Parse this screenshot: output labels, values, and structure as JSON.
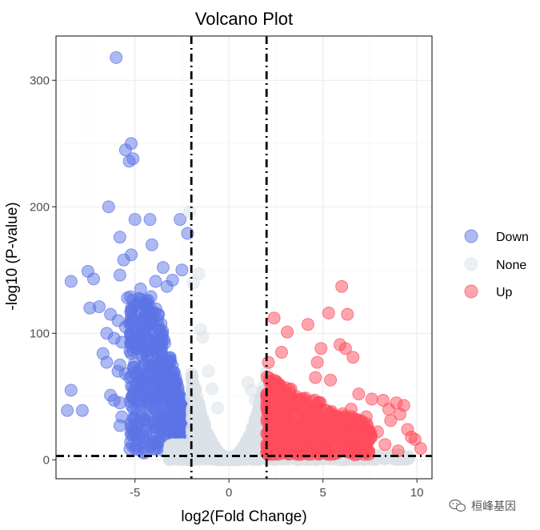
{
  "chart_data": {
    "type": "scatter",
    "title": "Volcano Plot",
    "xlabel": "log2(Fold Change)",
    "ylabel": "-log10 (P-value)",
    "xlim": [
      -9.2,
      10.8
    ],
    "ylim": [
      -15,
      335
    ],
    "x_ticks": [
      -5,
      0,
      5,
      10
    ],
    "y_ticks": [
      0,
      100,
      200,
      300
    ],
    "x_tick_labels": [
      "-5",
      "0",
      "5",
      "10"
    ],
    "y_tick_labels": [
      "0",
      "100",
      "200",
      "300"
    ],
    "grid": true,
    "legend_position": "right",
    "thresholds": {
      "fold_change": [
        -2,
        2
      ],
      "p_value_line": 3
    },
    "series": [
      {
        "name": "Down",
        "color": "#5b73e6",
        "points": [
          [
            -6,
            318
          ],
          [
            -5.2,
            250
          ],
          [
            -5.5,
            245
          ],
          [
            -5.1,
            238
          ],
          [
            -5.3,
            236
          ],
          [
            -6.4,
            200
          ],
          [
            -5,
            190
          ],
          [
            -4.2,
            190
          ],
          [
            -5.8,
            176
          ],
          [
            -2.6,
            190
          ],
          [
            -2.2,
            179
          ],
          [
            -4.1,
            170
          ],
          [
            -5.2,
            162
          ],
          [
            -5.6,
            158
          ],
          [
            -3.5,
            152
          ],
          [
            -2.5,
            150
          ],
          [
            -7.5,
            149
          ],
          [
            -5.8,
            146
          ],
          [
            -7.2,
            143
          ],
          [
            -8.4,
            141
          ],
          [
            -3.9,
            141
          ],
          [
            -3,
            142
          ],
          [
            -4.7,
            135
          ],
          [
            -3.3,
            137
          ],
          [
            -5.4,
            128
          ],
          [
            -4.4,
            126
          ],
          [
            -7.4,
            120
          ],
          [
            -6.9,
            121
          ],
          [
            -6.3,
            115
          ],
          [
            -5.9,
            110
          ],
          [
            -5.5,
            105
          ],
          [
            -6.5,
            100
          ],
          [
            -6.1,
            96
          ],
          [
            -5.7,
            93
          ],
          [
            -6.7,
            84
          ],
          [
            -6.5,
            77
          ],
          [
            -5.8,
            75
          ],
          [
            -5.9,
            70
          ],
          [
            -5.5,
            68
          ],
          [
            -6.3,
            51
          ],
          [
            -6.1,
            47
          ],
          [
            -5.8,
            45
          ],
          [
            -8.4,
            55
          ],
          [
            -8.6,
            39
          ],
          [
            -7.8,
            39
          ],
          [
            -5.7,
            34
          ],
          [
            -5.8,
            27
          ],
          [
            -4.8,
            30
          ],
          [
            -4.4,
            22
          ]
        ],
        "cluster": {
          "x_range": [
            -5.2,
            -2.0
          ],
          "y_range": [
            5,
            125
          ],
          "count": 650,
          "seed": 1
        }
      },
      {
        "name": "None",
        "color": "#dbe1e8",
        "points": [
          [
            -2.1,
            196
          ],
          [
            -1.6,
            147
          ],
          [
            -1.9,
            140
          ],
          [
            -1.5,
            103
          ],
          [
            -1.4,
            97
          ],
          [
            -1.1,
            70
          ],
          [
            1,
            61
          ],
          [
            1.4,
            47
          ],
          [
            1.6,
            38
          ],
          [
            -0.6,
            41
          ],
          [
            -0.9,
            56
          ],
          [
            1.2,
            55
          ],
          [
            1.8,
            42
          ]
        ],
        "cluster": {
          "x_range": [
            -2.0,
            2.0
          ],
          "y_range": [
            0,
            85
          ],
          "count": 900,
          "seed": 2
        }
      },
      {
        "name": "Up",
        "color": "#ff4b5c",
        "points": [
          [
            6,
            137
          ],
          [
            5.3,
            116
          ],
          [
            6.3,
            115
          ],
          [
            2.4,
            112
          ],
          [
            4.2,
            107
          ],
          [
            3.1,
            101
          ],
          [
            2.8,
            85
          ],
          [
            2.1,
            77
          ],
          [
            5.9,
            91
          ],
          [
            6.2,
            88
          ],
          [
            4.9,
            88
          ],
          [
            4.7,
            77
          ],
          [
            6.6,
            81
          ],
          [
            4.6,
            65
          ],
          [
            5.4,
            63
          ],
          [
            6.9,
            52
          ],
          [
            7.6,
            48
          ],
          [
            8.2,
            47
          ],
          [
            8.9,
            45
          ],
          [
            9.3,
            43
          ],
          [
            8.5,
            40
          ],
          [
            9.1,
            36
          ],
          [
            8.6,
            31
          ],
          [
            9.5,
            24
          ],
          [
            9.7,
            18
          ],
          [
            9.9,
            16
          ],
          [
            10.2,
            9
          ],
          [
            7.3,
            34
          ],
          [
            6.8,
            29
          ],
          [
            7.9,
            22
          ],
          [
            8.3,
            12
          ],
          [
            9,
            7
          ],
          [
            6.5,
            40
          ]
        ],
        "cluster": {
          "x_range": [
            2.0,
            7.5
          ],
          "y_range": [
            5,
            70
          ],
          "count": 550,
          "seed": 3
        }
      }
    ]
  },
  "legend": {
    "items": [
      {
        "label": "Down",
        "color": "#5b73e6"
      },
      {
        "label": "None",
        "color": "#dbe1e8"
      },
      {
        "label": "Up",
        "color": "#ff4b5c"
      }
    ]
  },
  "watermark": {
    "text": "桓峰基因"
  }
}
